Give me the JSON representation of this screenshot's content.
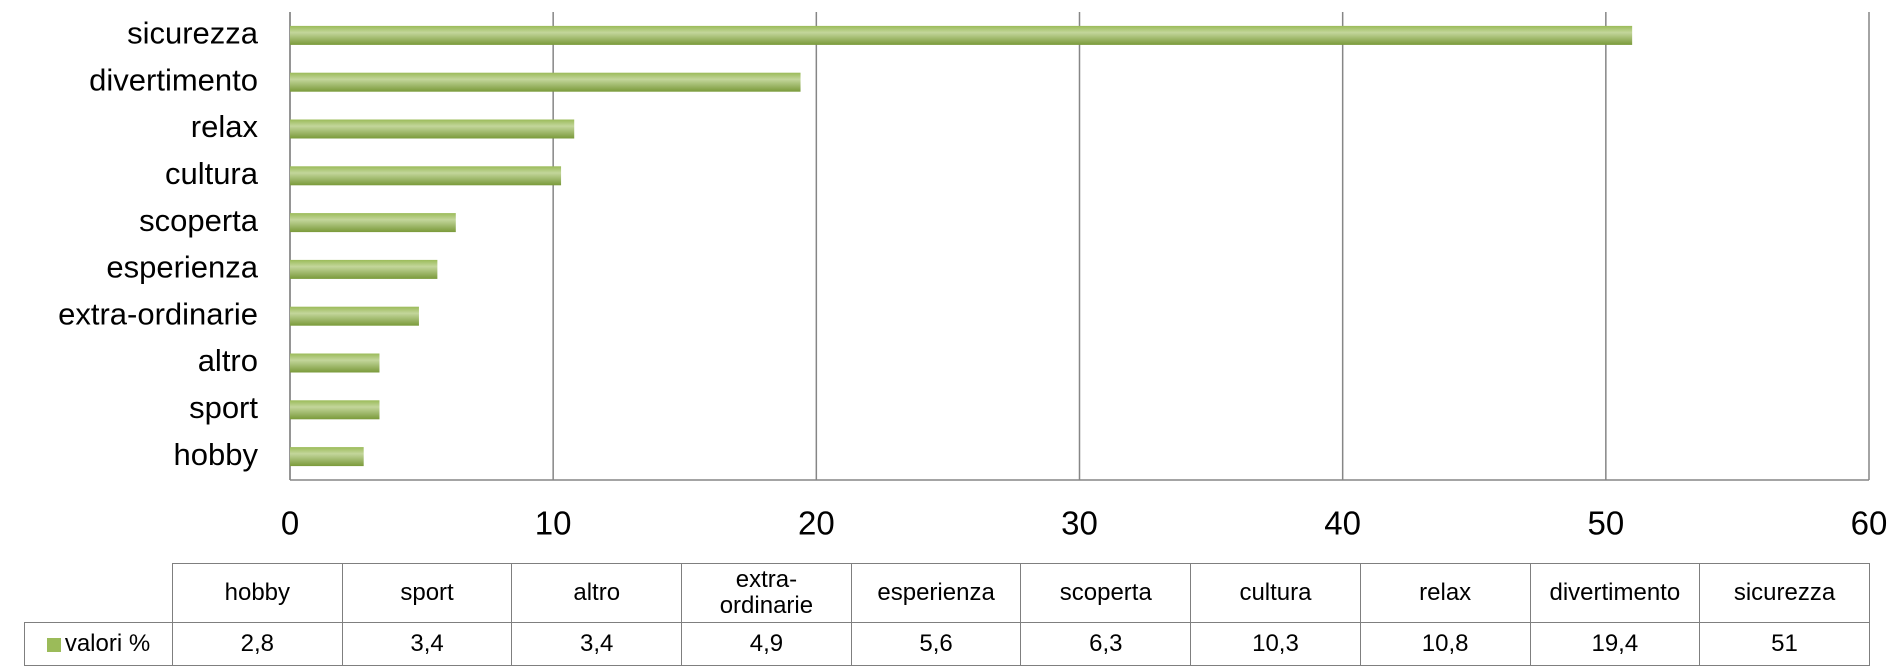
{
  "chart_data": {
    "type": "bar",
    "orientation": "horizontal",
    "categories": [
      "hobby",
      "sport",
      "altro",
      "extra-ordinarie",
      "esperienza",
      "scoperta",
      "cultura",
      "relax",
      "divertimento",
      "sicurezza"
    ],
    "series": [
      {
        "name": "valori %",
        "color": "#9bbb59",
        "values": [
          2.8,
          3.4,
          3.4,
          4.9,
          5.6,
          6.3,
          10.3,
          10.8,
          19.4,
          51
        ],
        "value_labels": [
          "2,8",
          "3,4",
          "3,4",
          "4,9",
          "5,6",
          "6,3",
          "10,3",
          "10,8",
          "19,4",
          "51"
        ]
      }
    ],
    "xlim": [
      0,
      60
    ],
    "xticks": [
      0,
      10,
      20,
      30,
      40,
      50,
      60
    ],
    "grid": true,
    "data_table": true
  }
}
